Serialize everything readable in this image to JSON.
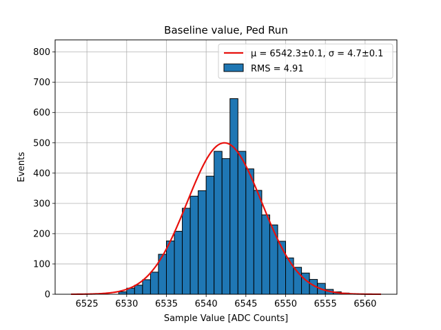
{
  "chart_data": {
    "type": "bar",
    "title": "Baseline value, Ped Run",
    "xlabel": "Sample Value [ADC Counts]",
    "ylabel": "Events",
    "xlim": [
      6521,
      6564
    ],
    "ylim": [
      0,
      840
    ],
    "xticks": [
      6525,
      6530,
      6535,
      6540,
      6545,
      6550,
      6555,
      6560
    ],
    "yticks": [
      0,
      100,
      200,
      300,
      400,
      500,
      600,
      700,
      800
    ],
    "grid": true,
    "histogram": {
      "bin_width": 1,
      "bins": [
        {
          "x": 6529.5,
          "value": 8
        },
        {
          "x": 6530.5,
          "value": 20
        },
        {
          "x": 6531.5,
          "value": 30
        },
        {
          "x": 6532.5,
          "value": 48
        },
        {
          "x": 6533.5,
          "value": 73
        },
        {
          "x": 6534.5,
          "value": 132
        },
        {
          "x": 6535.5,
          "value": 176
        },
        {
          "x": 6536.5,
          "value": 208
        },
        {
          "x": 6537.5,
          "value": 284
        },
        {
          "x": 6538.5,
          "value": 324
        },
        {
          "x": 6539.5,
          "value": 342
        },
        {
          "x": 6540.5,
          "value": 390
        },
        {
          "x": 6541.5,
          "value": 472
        },
        {
          "x": 6542.5,
          "value": 448
        },
        {
          "x": 6543.5,
          "value": 646
        },
        {
          "x": 6544.5,
          "value": 472
        },
        {
          "x": 6545.5,
          "value": 414
        },
        {
          "x": 6546.5,
          "value": 343
        },
        {
          "x": 6547.5,
          "value": 262
        },
        {
          "x": 6548.5,
          "value": 229
        },
        {
          "x": 6549.5,
          "value": 175
        },
        {
          "x": 6550.5,
          "value": 120
        },
        {
          "x": 6551.5,
          "value": 89
        },
        {
          "x": 6552.5,
          "value": 70
        },
        {
          "x": 6553.5,
          "value": 49
        },
        {
          "x": 6554.5,
          "value": 36
        },
        {
          "x": 6555.5,
          "value": 16
        },
        {
          "x": 6556.5,
          "value": 8
        },
        {
          "x": 6557.5,
          "value": 4
        }
      ],
      "color": "#1f77b4",
      "edge_color": "#000000"
    },
    "fit": {
      "mu": 6542.3,
      "sigma": 4.7,
      "amplitude": 500,
      "x_range": [
        6523,
        6562
      ],
      "color": "#e8100c"
    },
    "legend": {
      "position": "top-right",
      "entries": [
        {
          "label": "μ = 6542.3±0.1, σ = 4.7±0.1",
          "kind": "line"
        },
        {
          "label": "RMS = 4.91",
          "kind": "patch"
        }
      ]
    }
  }
}
